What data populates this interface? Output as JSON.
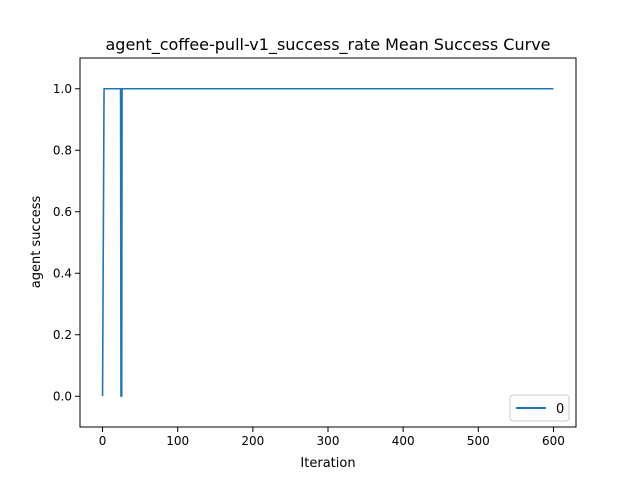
{
  "chart_data": {
    "type": "line",
    "title": "agent_coffee-pull-v1_success_rate Mean Success Curve",
    "xlabel": "Iteration",
    "ylabel": "agent success",
    "xlim": [
      -30,
      630
    ],
    "ylim": [
      -0.1,
      1.1
    ],
    "xticks": [
      0,
      100,
      200,
      300,
      400,
      500,
      600
    ],
    "yticks": [
      0.0,
      0.2,
      0.4,
      0.6,
      0.8,
      1.0
    ],
    "xtick_labels": [
      "0",
      "100",
      "200",
      "300",
      "400",
      "500",
      "600"
    ],
    "ytick_labels": [
      "0.0",
      "0.2",
      "0.4",
      "0.6",
      "0.8",
      "1.0"
    ],
    "grid": false,
    "legend": "lower-right",
    "series": [
      {
        "name": "0",
        "color": "#1f77b4",
        "x": [
          0,
          2,
          3,
          24,
          24.5,
          25,
          25.5,
          26,
          600
        ],
        "y": [
          0,
          1,
          1,
          1,
          0,
          1,
          0,
          1,
          1
        ]
      }
    ]
  }
}
